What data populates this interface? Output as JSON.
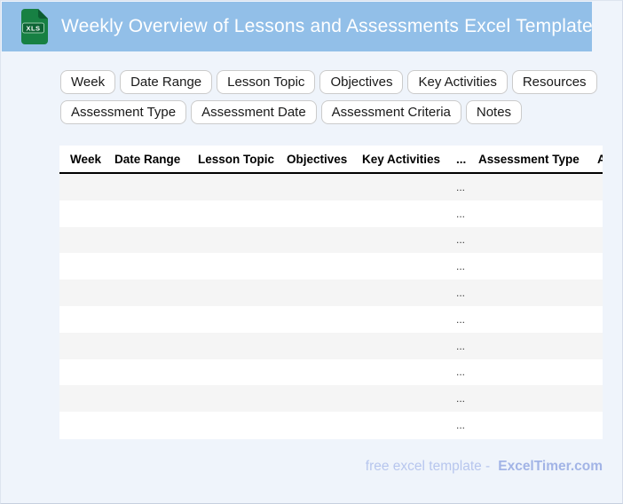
{
  "header": {
    "title": "Weekly Overview of Lessons and Assessments Excel Template",
    "bg_color": "#92bfe8",
    "icon": {
      "label": "XLS",
      "body_color": "#178043",
      "fold_color": "#0c5c30",
      "badge_color": "#0d6434"
    }
  },
  "chips": {
    "row1": [
      "Week",
      "Date Range",
      "Lesson Topic",
      "Objectives",
      "Key Activities",
      "Resources"
    ],
    "row2": [
      "Assessment Type",
      "Assessment Date",
      "Assessment Criteria",
      "Notes"
    ]
  },
  "table": {
    "columns": [
      "Week",
      "Date Range",
      "Lesson Topic",
      "Objectives",
      "Key Activities",
      "...",
      "Assessment Type",
      "Assessment Date"
    ],
    "rows": [
      [
        "",
        "",
        "",
        "",
        "",
        "...",
        "",
        ""
      ],
      [
        "",
        "",
        "",
        "",
        "",
        "...",
        "",
        ""
      ],
      [
        "",
        "",
        "",
        "",
        "",
        "...",
        "",
        ""
      ],
      [
        "",
        "",
        "",
        "",
        "",
        "...",
        "",
        ""
      ],
      [
        "",
        "",
        "",
        "",
        "",
        "...",
        "",
        ""
      ],
      [
        "",
        "",
        "",
        "",
        "",
        "...",
        "",
        ""
      ],
      [
        "",
        "",
        "",
        "",
        "",
        "...",
        "",
        ""
      ],
      [
        "",
        "",
        "",
        "",
        "",
        "...",
        "",
        ""
      ],
      [
        "",
        "",
        "",
        "",
        "",
        "...",
        "",
        ""
      ],
      [
        "",
        "",
        "",
        "",
        "",
        "...",
        "",
        ""
      ]
    ],
    "stripe_color": "#f5f5f5"
  },
  "footer": {
    "text": "free excel template -",
    "brand": "ExcelTimer.com",
    "text_color": "#b7c6ee",
    "brand_color": "#a2b4e6"
  }
}
